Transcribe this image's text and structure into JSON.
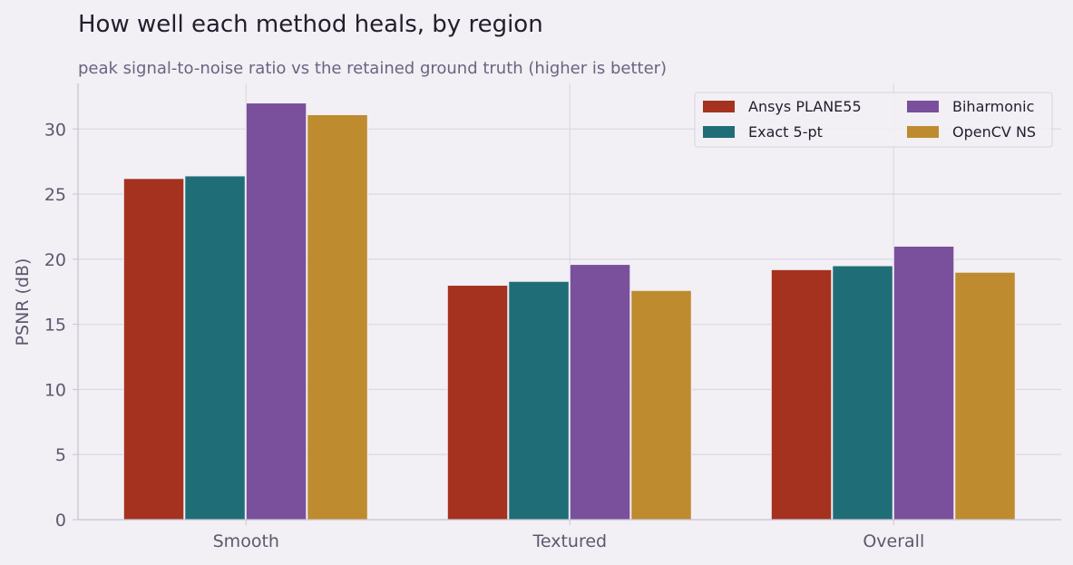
{
  "chart_data": {
    "type": "bar",
    "title": "How well each method heals, by region",
    "subtitle": "peak signal-to-noise ratio vs the retained ground truth (higher is better)",
    "xlabel": "",
    "ylabel": "PSNR (dB)",
    "categories": [
      "Smooth",
      "Textured",
      "Overall"
    ],
    "ylim": [
      0,
      33.5
    ],
    "yticks": [
      0,
      5,
      10,
      15,
      20,
      25,
      30
    ],
    "grid": true,
    "legend_position": "top-right",
    "series": [
      {
        "name": "Ansys PLANE55",
        "color": "#a5321e",
        "values": [
          26.2,
          18.0,
          19.2
        ]
      },
      {
        "name": "Exact 5-pt",
        "color": "#1f6e77",
        "values": [
          26.4,
          18.3,
          19.5
        ]
      },
      {
        "name": "Biharmonic",
        "color": "#7a509c",
        "values": [
          32.0,
          19.6,
          21.0
        ]
      },
      {
        "name": "OpenCV NS",
        "color": "#bf8b2f",
        "values": [
          31.1,
          17.6,
          19.0
        ]
      }
    ]
  }
}
